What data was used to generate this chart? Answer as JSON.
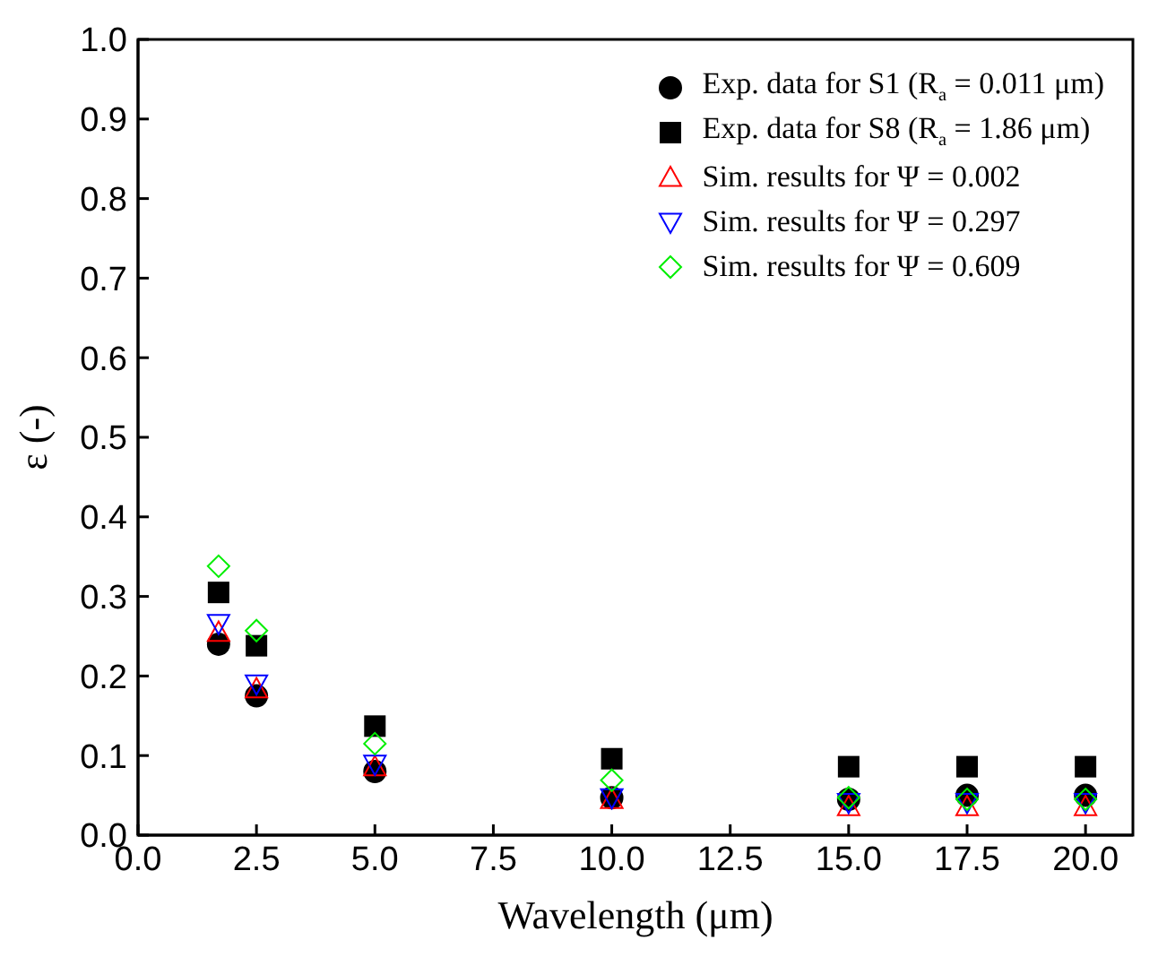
{
  "chart_data": {
    "type": "scatter",
    "xlabel": "Wavelength (μm)",
    "ylabel": "ε (-)",
    "x": [
      1.7,
      2.5,
      5,
      10,
      15,
      17.5,
      20
    ],
    "xlim": [
      0,
      21
    ],
    "xticks": [
      {
        "value": 0,
        "label": "0.0"
      },
      {
        "value": 2.5,
        "label": "2.5"
      },
      {
        "value": 5,
        "label": "5.0"
      },
      {
        "value": 7.5,
        "label": "7.5"
      },
      {
        "value": 10,
        "label": "10.0"
      },
      {
        "value": 12.5,
        "label": "12.5"
      },
      {
        "value": 15,
        "label": "15.0"
      },
      {
        "value": 17.5,
        "label": "17.5"
      },
      {
        "value": 20,
        "label": "20.0"
      }
    ],
    "ylim": [
      0,
      1
    ],
    "yticks": [
      {
        "value": 0,
        "label": "0.0"
      },
      {
        "value": 0.1,
        "label": "0.1"
      },
      {
        "value": 0.2,
        "label": "0.2"
      },
      {
        "value": 0.3,
        "label": "0.3"
      },
      {
        "value": 0.4,
        "label": "0.4"
      },
      {
        "value": 0.5,
        "label": "0.5"
      },
      {
        "value": 0.6,
        "label": "0.6"
      },
      {
        "value": 0.7,
        "label": "0.7"
      },
      {
        "value": 0.8,
        "label": "0.8"
      },
      {
        "value": 0.9,
        "label": "0.9"
      },
      {
        "value": 1,
        "label": "1.0"
      }
    ],
    "legend": "top right",
    "series": [
      {
        "name": "Exp. data for S1 (R$_{a}$ = 0.011 μm)",
        "color": "#000000",
        "marker": "circle",
        "values": [
          0.24,
          0.175,
          0.08,
          0.047,
          0.045,
          0.05,
          0.05
        ]
      },
      {
        "name": "Exp. data for S8 (R$_{a}$ = 1.86 μm)",
        "color": "#000000",
        "marker": "square",
        "values": [
          0.305,
          0.238,
          0.137,
          0.096,
          0.086,
          0.086,
          0.086
        ]
      },
      {
        "name": "Sim. results for Ψ = 0.002",
        "color": "#ff0000",
        "marker": "triangle",
        "values": [
          0.255,
          0.184,
          0.086,
          0.045,
          0.036,
          0.036,
          0.036
        ]
      },
      {
        "name": "Sim. results for Ψ = 0.297",
        "color": "#0000ff",
        "marker": "triangle-down",
        "values": [
          0.266,
          0.19,
          0.089,
          0.047,
          0.041,
          0.041,
          0.041
        ]
      },
      {
        "name": "Sim. results for Ψ = 0.609",
        "color": "#00ee00",
        "marker": "diamond",
        "values": [
          0.338,
          0.257,
          0.115,
          0.069,
          0.047,
          0.045,
          0.045
        ]
      }
    ]
  }
}
